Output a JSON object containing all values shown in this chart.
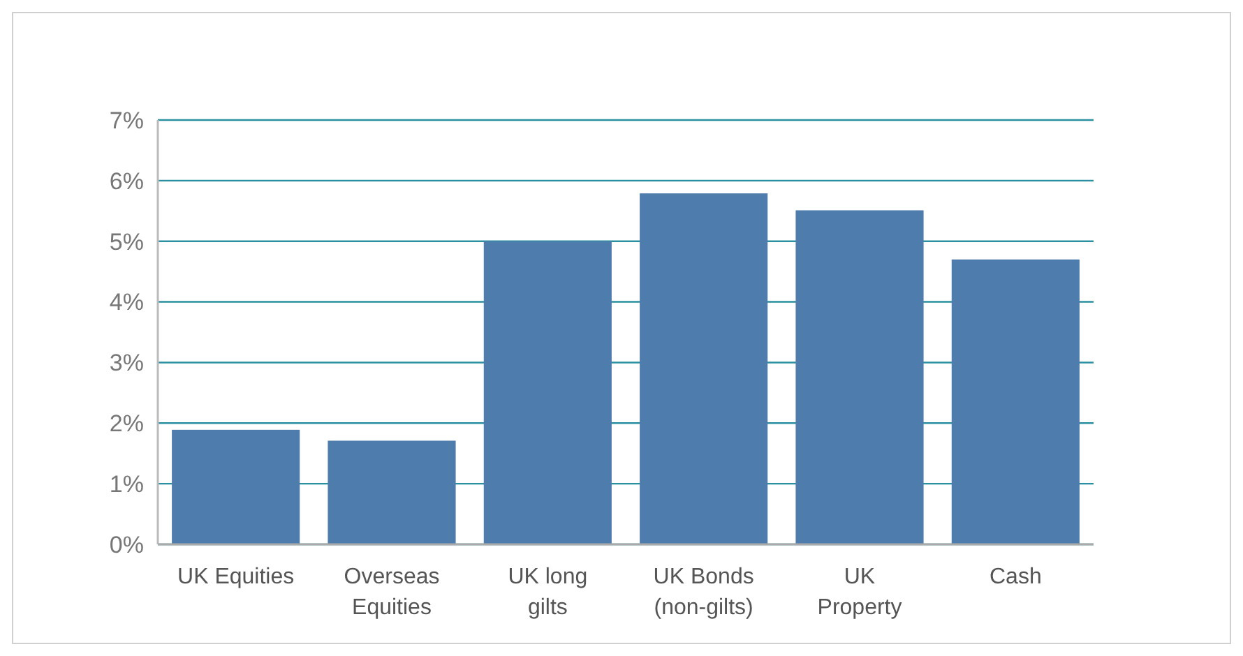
{
  "chart_data": {
    "type": "bar",
    "categories": [
      "UK Equities",
      "Overseas\nEquities",
      "UK long\ngilts",
      "UK Bonds\n(non-gilts)",
      "UK\nProperty",
      "Cash"
    ],
    "values": [
      1.89,
      1.71,
      5.0,
      5.79,
      5.51,
      4.7
    ],
    "color": "#4e7cac",
    "ylim": [
      0,
      7
    ],
    "yticks": [
      {
        "value": 0,
        "label": "0%"
      },
      {
        "value": 1,
        "label": "1%"
      },
      {
        "value": 2,
        "label": "2%"
      },
      {
        "value": 3,
        "label": "3%"
      },
      {
        "value": 4,
        "label": "4%"
      },
      {
        "value": 5,
        "label": "5%"
      },
      {
        "value": 6,
        "label": "6%"
      },
      {
        "value": 7,
        "label": "7%"
      }
    ],
    "grid": "y"
  }
}
